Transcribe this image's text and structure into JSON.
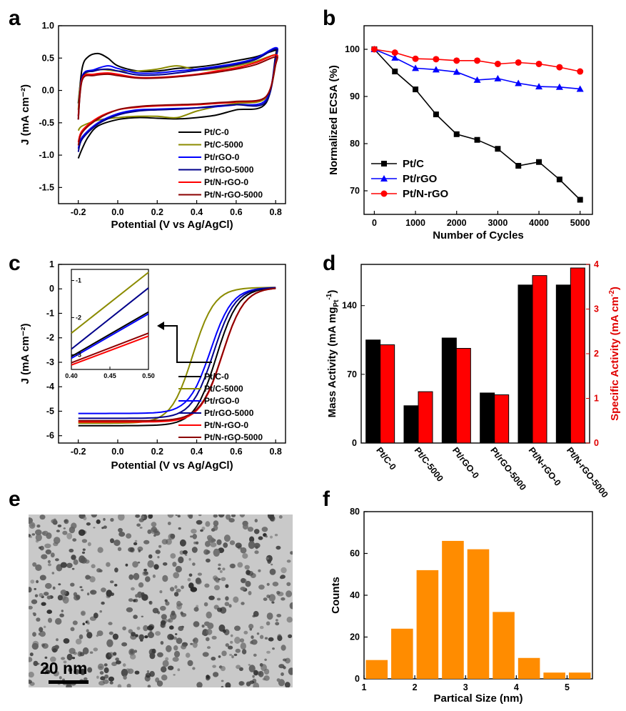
{
  "panels": {
    "a": "a",
    "b": "b",
    "c": "c",
    "d": "d",
    "e": "e",
    "f": "f"
  },
  "scalebar_label": "20 nm",
  "chart_data": [
    {
      "id": "a",
      "type": "line",
      "xlabel": "Potential (V vs Ag/AgCl)",
      "ylabel": "J (mA cm⁻²)",
      "xlim": [
        -0.3,
        0.85
      ],
      "ylim": [
        -1.75,
        1.0
      ],
      "xticks": [
        -0.2,
        0.0,
        0.2,
        0.4,
        0.6,
        0.8
      ],
      "xticklabels": [
        "-0.2",
        "0.0",
        "0.2",
        "0.4",
        "0.6",
        "0.8"
      ],
      "yticks": [
        1.0,
        0.5,
        0.0,
        -0.5,
        -1.0,
        -1.5
      ],
      "yticklabels": [
        "1.0",
        "0.5",
        "0.0",
        "-0.5",
        "-1.0",
        "-1.5"
      ],
      "legend_position": "bottom-right",
      "series": [
        {
          "name": "Pt/C-0",
          "color": "#000000",
          "anodic": [
            [
              -0.2,
              -0.2
            ],
            [
              -0.18,
              0.35
            ],
            [
              -0.15,
              0.52
            ],
            [
              -0.1,
              0.57
            ],
            [
              -0.05,
              0.5
            ],
            [
              0.0,
              0.38
            ],
            [
              0.1,
              0.3
            ],
            [
              0.2,
              0.3
            ],
            [
              0.3,
              0.34
            ],
            [
              0.4,
              0.36
            ],
            [
              0.5,
              0.4
            ],
            [
              0.6,
              0.46
            ],
            [
              0.7,
              0.52
            ],
            [
              0.8,
              0.62
            ]
          ],
          "cathodic": [
            [
              0.8,
              0.55
            ],
            [
              0.75,
              -0.2
            ],
            [
              0.6,
              -0.3
            ],
            [
              0.5,
              -0.38
            ],
            [
              0.4,
              -0.42
            ],
            [
              0.3,
              -0.44
            ],
            [
              0.2,
              -0.43
            ],
            [
              0.1,
              -0.42
            ],
            [
              0.0,
              -0.45
            ],
            [
              -0.1,
              -0.55
            ],
            [
              -0.15,
              -0.72
            ],
            [
              -0.18,
              -0.9
            ],
            [
              -0.2,
              -1.05
            ]
          ]
        },
        {
          "name": "Pt/C-5000",
          "color": "#8b8b00",
          "anodic": [
            [
              -0.2,
              -0.3
            ],
            [
              -0.18,
              0.2
            ],
            [
              -0.1,
              0.32
            ],
            [
              0.0,
              0.3
            ],
            [
              0.1,
              0.3
            ],
            [
              0.2,
              0.33
            ],
            [
              0.3,
              0.38
            ],
            [
              0.4,
              0.32
            ],
            [
              0.5,
              0.33
            ],
            [
              0.6,
              0.38
            ],
            [
              0.7,
              0.45
            ],
            [
              0.8,
              0.55
            ]
          ],
          "cathodic": [
            [
              0.8,
              0.4
            ],
            [
              0.75,
              -0.12
            ],
            [
              0.6,
              -0.2
            ],
            [
              0.5,
              -0.25
            ],
            [
              0.4,
              -0.32
            ],
            [
              0.3,
              -0.42
            ],
            [
              0.2,
              -0.4
            ],
            [
              0.1,
              -0.4
            ],
            [
              0.0,
              -0.42
            ],
            [
              -0.1,
              -0.46
            ],
            [
              -0.18,
              -0.55
            ],
            [
              -0.2,
              -0.62
            ]
          ]
        },
        {
          "name": "Pt/rGO-0",
          "color": "#0000ff",
          "anodic": [
            [
              -0.2,
              -0.4
            ],
            [
              -0.18,
              0.22
            ],
            [
              -0.12,
              0.32
            ],
            [
              -0.05,
              0.38
            ],
            [
              0.0,
              0.34
            ],
            [
              0.1,
              0.27
            ],
            [
              0.2,
              0.27
            ],
            [
              0.3,
              0.3
            ],
            [
              0.4,
              0.33
            ],
            [
              0.5,
              0.37
            ],
            [
              0.6,
              0.42
            ],
            [
              0.7,
              0.5
            ],
            [
              0.8,
              0.66
            ]
          ],
          "cathodic": [
            [
              0.8,
              0.5
            ],
            [
              0.75,
              -0.15
            ],
            [
              0.6,
              -0.22
            ],
            [
              0.5,
              -0.25
            ],
            [
              0.4,
              -0.27
            ],
            [
              0.3,
              -0.28
            ],
            [
              0.2,
              -0.29
            ],
            [
              0.1,
              -0.3
            ],
            [
              0.0,
              -0.36
            ],
            [
              -0.1,
              -0.5
            ],
            [
              -0.18,
              -0.72
            ],
            [
              -0.2,
              -0.9
            ]
          ]
        },
        {
          "name": "Pt/rGO-5000",
          "color": "#00008b",
          "anodic": [
            [
              -0.2,
              -0.45
            ],
            [
              -0.18,
              0.2
            ],
            [
              -0.12,
              0.3
            ],
            [
              -0.05,
              0.33
            ],
            [
              0.0,
              0.3
            ],
            [
              0.1,
              0.24
            ],
            [
              0.2,
              0.24
            ],
            [
              0.3,
              0.27
            ],
            [
              0.4,
              0.31
            ],
            [
              0.5,
              0.35
            ],
            [
              0.6,
              0.4
            ],
            [
              0.7,
              0.48
            ],
            [
              0.8,
              0.64
            ]
          ],
          "cathodic": [
            [
              0.8,
              0.48
            ],
            [
              0.75,
              -0.18
            ],
            [
              0.6,
              -0.22
            ],
            [
              0.5,
              -0.24
            ],
            [
              0.4,
              -0.27
            ],
            [
              0.3,
              -0.29
            ],
            [
              0.2,
              -0.3
            ],
            [
              0.1,
              -0.32
            ],
            [
              0.0,
              -0.38
            ],
            [
              -0.1,
              -0.52
            ],
            [
              -0.18,
              -0.75
            ],
            [
              -0.2,
              -0.95
            ]
          ]
        },
        {
          "name": "Pt/N-rGO-0",
          "color": "#ff0000",
          "anodic": [
            [
              -0.2,
              -0.4
            ],
            [
              -0.18,
              0.18
            ],
            [
              -0.12,
              0.25
            ],
            [
              -0.05,
              0.27
            ],
            [
              0.0,
              0.25
            ],
            [
              0.1,
              0.2
            ],
            [
              0.2,
              0.2
            ],
            [
              0.3,
              0.22
            ],
            [
              0.4,
              0.25
            ],
            [
              0.5,
              0.3
            ],
            [
              0.6,
              0.35
            ],
            [
              0.7,
              0.43
            ],
            [
              0.8,
              0.55
            ]
          ],
          "cathodic": [
            [
              0.8,
              0.42
            ],
            [
              0.75,
              -0.1
            ],
            [
              0.6,
              -0.18
            ],
            [
              0.5,
              -0.2
            ],
            [
              0.4,
              -0.22
            ],
            [
              0.3,
              -0.23
            ],
            [
              0.2,
              -0.24
            ],
            [
              0.1,
              -0.26
            ],
            [
              0.0,
              -0.3
            ],
            [
              -0.1,
              -0.42
            ],
            [
              -0.18,
              -0.62
            ],
            [
              -0.2,
              -0.8
            ]
          ]
        },
        {
          "name": "Pt/N-rGO-5000",
          "color": "#8b0000",
          "anodic": [
            [
              -0.2,
              -0.45
            ],
            [
              -0.18,
              0.16
            ],
            [
              -0.12,
              0.23
            ],
            [
              -0.05,
              0.25
            ],
            [
              0.0,
              0.23
            ],
            [
              0.1,
              0.19
            ],
            [
              0.2,
              0.19
            ],
            [
              0.3,
              0.21
            ],
            [
              0.4,
              0.24
            ],
            [
              0.5,
              0.28
            ],
            [
              0.6,
              0.33
            ],
            [
              0.7,
              0.4
            ],
            [
              0.8,
              0.52
            ]
          ],
          "cathodic": [
            [
              0.8,
              0.4
            ],
            [
              0.75,
              -0.1
            ],
            [
              0.6,
              -0.17
            ],
            [
              0.5,
              -0.19
            ],
            [
              0.4,
              -0.21
            ],
            [
              0.3,
              -0.22
            ],
            [
              0.2,
              -0.23
            ],
            [
              0.1,
              -0.25
            ],
            [
              0.0,
              -0.3
            ],
            [
              -0.1,
              -0.44
            ],
            [
              -0.18,
              -0.65
            ],
            [
              -0.2,
              -0.85
            ]
          ]
        }
      ]
    },
    {
      "id": "b",
      "type": "line",
      "xlabel": "Number of Cycles",
      "ylabel": "Normalized ECSA (%)",
      "xlim": [
        -250,
        5300
      ],
      "ylim": [
        65,
        105
      ],
      "xticks": [
        0,
        1000,
        2000,
        3000,
        4000,
        5000
      ],
      "xticklabels": [
        "0",
        "1000",
        "2000",
        "3000",
        "4000",
        "5000"
      ],
      "yticks": [
        70,
        80,
        90,
        100
      ],
      "yticklabels": [
        "70",
        "80",
        "90",
        "100"
      ],
      "legend_position": "bottom-left",
      "x": [
        0,
        500,
        1000,
        1500,
        2000,
        2500,
        3000,
        3500,
        4000,
        4500,
        5000
      ],
      "series": [
        {
          "name": "Pt/C",
          "color": "#000000",
          "marker": "square",
          "values": [
            100,
            95.3,
            91.5,
            86.2,
            82.0,
            80.8,
            78.9,
            75.3,
            76.1,
            72.4,
            68.1
          ]
        },
        {
          "name": "Pt/rGO",
          "color": "#0000ff",
          "marker": "triangle",
          "values": [
            100,
            98.2,
            96.0,
            95.7,
            95.2,
            93.5,
            93.8,
            92.8,
            92.1,
            92.0,
            91.6
          ]
        },
        {
          "name": "Pt/N-rGO",
          "color": "#ff0000",
          "marker": "circle",
          "values": [
            100,
            99.3,
            98.0,
            97.9,
            97.6,
            97.6,
            96.9,
            97.2,
            96.9,
            96.2,
            95.3
          ]
        }
      ]
    },
    {
      "id": "c",
      "type": "line",
      "xlabel": "Potential (V vs Ag/AgCl)",
      "ylabel": "J (mA cm⁻²)",
      "xlim": [
        -0.3,
        0.85
      ],
      "ylim": [
        -6.3,
        1.0
      ],
      "xticks": [
        -0.2,
        0.0,
        0.2,
        0.4,
        0.6,
        0.8
      ],
      "xticklabels": [
        "-0.2",
        "0.0",
        "0.2",
        "0.4",
        "0.6",
        "0.8"
      ],
      "yticks": [
        1,
        0,
        -1,
        -2,
        -3,
        -4,
        -5,
        -6
      ],
      "yticklabels": [
        "1",
        "0",
        "-1",
        "-2",
        "-3",
        "-4",
        "-5",
        "-6"
      ],
      "legend_position": "bottom-right",
      "series": [
        {
          "name": "Pt/C-0",
          "color": "#000000",
          "half": 0.5,
          "jl": -5.65
        },
        {
          "name": "Pt/C-5000",
          "color": "#8b8b00",
          "half": 0.38,
          "jl": -5.55
        },
        {
          "name": "Pt/rGO-0",
          "color": "#0000ff",
          "half": 0.47,
          "jl": -5.15
        },
        {
          "name": "Pt/rGO-5000",
          "color": "#00008b",
          "half": 0.485,
          "jl": -5.35
        },
        {
          "name": "Pt/N-rGO-0",
          "color": "#ff0000",
          "half": 0.53,
          "jl": -5.5
        },
        {
          "name": "Pt/N-rGO-5000",
          "color": "#8b0000",
          "half": 0.53,
          "jl": -5.45
        }
      ],
      "inset": {
        "xlim": [
          0.4,
          0.5
        ],
        "ylim": [
          -3.4,
          -0.7
        ],
        "xticks": [
          0.4,
          0.45,
          0.5
        ],
        "xticklabels": [
          "0.40",
          "0.45",
          "0.50"
        ],
        "yticks": [
          -1,
          -2,
          -3
        ],
        "yticklabels": [
          "-1",
          "-2",
          "-3"
        ],
        "lines": [
          {
            "color": "#8b8b00",
            "y0": -2.42,
            "y1": -0.78
          },
          {
            "color": "#00008b",
            "y0": -2.85,
            "y1": -1.2
          },
          {
            "color": "#000000",
            "y0": -3.05,
            "y1": -1.85
          },
          {
            "color": "#0000ff",
            "y0": -3.1,
            "y1": -1.9
          },
          {
            "color": "#8b0000",
            "y0": -3.22,
            "y1": -2.42
          },
          {
            "color": "#ff0000",
            "y0": -3.28,
            "y1": -2.5
          }
        ]
      }
    },
    {
      "id": "d",
      "type": "bar",
      "ylabel": "Mass Activity (mA mg",
      "ylabel_sub": "Pt",
      "ylabel_sup": "-1",
      "ylabel_end": ")",
      "y2label": "Specific Activity (mA cm",
      "y2label_sup": "-2",
      "y2label_end": ")",
      "categories": [
        "Pt/C-0",
        "Pt/C-5000",
        "Pt/rGO-0",
        "Pt/rGO-5000",
        "Pt/N-rGO-0",
        "Pt/N-rGO-5000"
      ],
      "ylim": [
        0,
        182
      ],
      "y2lim": [
        0,
        4
      ],
      "yticks": [
        0,
        70,
        140
      ],
      "yticklabels": [
        "0",
        "70",
        "140"
      ],
      "y2ticks": [
        0,
        1,
        2,
        3,
        4
      ],
      "y2ticklabels": [
        "0",
        "1",
        "2",
        "3",
        "4"
      ],
      "series": [
        {
          "name": "Mass Activity",
          "color": "#000000",
          "axis": "left",
          "values": [
            105,
            38,
            107,
            51,
            161,
            161
          ]
        },
        {
          "name": "Specific Activity",
          "color": "#ff0000",
          "axis": "right",
          "values": [
            2.2,
            1.15,
            2.12,
            1.08,
            3.75,
            3.92
          ]
        }
      ]
    },
    {
      "id": "f",
      "type": "bar",
      "xlabel": "Partical Size (nm)",
      "ylabel": "Counts",
      "xlim": [
        1,
        5.5
      ],
      "ylim": [
        0,
        80
      ],
      "xticks": [
        1,
        2,
        3,
        4,
        5
      ],
      "xticklabels": [
        "1",
        "2",
        "3",
        "4",
        "5"
      ],
      "yticks": [
        0,
        20,
        40,
        60,
        80
      ],
      "yticklabels": [
        "0",
        "20",
        "40",
        "60",
        "80"
      ],
      "bin_width": 0.5,
      "bar_color": "#ff8c00",
      "x": [
        1.25,
        1.75,
        2.25,
        2.75,
        3.25,
        3.75,
        4.25,
        4.75,
        5.25
      ],
      "values": [
        9,
        24,
        52,
        66,
        62,
        32,
        10,
        3,
        3
      ]
    }
  ]
}
